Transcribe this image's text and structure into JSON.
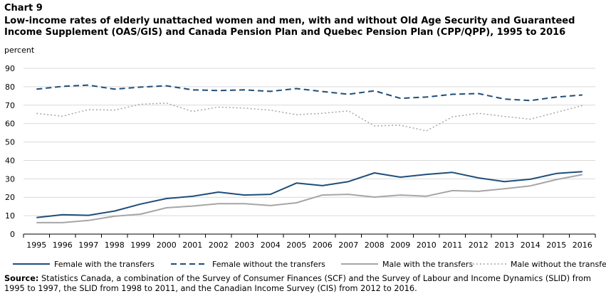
{
  "chart_label": "Chart 9",
  "chart_data": {
    "type": "line",
    "title": "Low-income rates of elderly unattached women and men, with and without Old Age Security and Guaranteed Income Supplement (OAS/GIS) and Canada Pension Plan and Quebec Pension Plan (CPP/QPP), 1995 to 2016",
    "ylabel": "percent",
    "xlabel": "",
    "ylim": [
      0,
      90
    ],
    "yticks": [
      0,
      10,
      20,
      30,
      40,
      50,
      60,
      70,
      80,
      90
    ],
    "grid": true,
    "legend_position": "bottom",
    "categories": [
      "1995",
      "1996",
      "1997",
      "1998",
      "1999",
      "2000",
      "2001",
      "2002",
      "2003",
      "2004",
      "2005",
      "2006",
      "2007",
      "2008",
      "2009",
      "2010",
      "2011",
      "2012",
      "2013",
      "2014",
      "2015",
      "2016"
    ],
    "series": [
      {
        "name": "Female with the transfers",
        "color": "#1f4e79",
        "style": "solid",
        "values": [
          9.0,
          10.5,
          10.2,
          12.5,
          16.3,
          19.3,
          20.5,
          22.8,
          21.2,
          21.6,
          27.7,
          26.3,
          28.5,
          33.2,
          30.9,
          32.4,
          33.5,
          30.5,
          28.5,
          29.8,
          32.9,
          33.9
        ]
      },
      {
        "name": "Female without the transfers",
        "color": "#1f4e79",
        "style": "dashed",
        "values": [
          78.7,
          80.2,
          80.9,
          78.7,
          79.8,
          80.5,
          78.3,
          77.9,
          78.3,
          77.5,
          79.0,
          77.4,
          75.9,
          77.8,
          73.7,
          74.4,
          75.9,
          76.3,
          73.3,
          72.5,
          74.4,
          75.5
        ]
      },
      {
        "name": "Male with the transfers",
        "color": "#a6a6a6",
        "style": "solid",
        "values": [
          6.2,
          6.2,
          7.4,
          9.7,
          10.8,
          14.3,
          15.2,
          16.5,
          16.5,
          15.5,
          17.0,
          21.2,
          21.6,
          20.1,
          21.2,
          20.6,
          23.6,
          23.2,
          24.6,
          26.2,
          29.6,
          32.3
        ]
      },
      {
        "name": "Male without the transfers",
        "color": "#a6a6a6",
        "style": "dotted",
        "values": [
          65.5,
          64.0,
          67.6,
          67.3,
          70.5,
          71.1,
          66.6,
          68.9,
          68.4,
          67.3,
          64.8,
          65.6,
          66.9,
          58.7,
          59.1,
          56.0,
          63.6,
          65.6,
          63.9,
          62.4,
          66.1,
          69.8
        ]
      }
    ]
  },
  "source": {
    "label": "Source:",
    "text": " Statistics Canada, a combination of the Survey of Consumer Finances (SCF) and the Survey of Labour and Income Dynamics (SLID) from 1995 to 1997, the SLID from 1998 to 2011, and the Canadian Income Survey (CIS) from 2012 to 2016."
  }
}
